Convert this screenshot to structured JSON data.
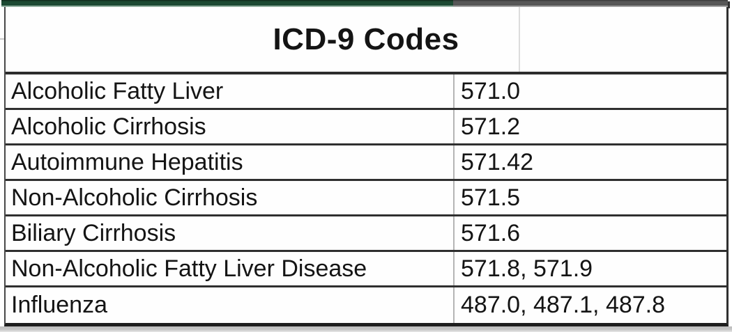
{
  "chart_data": {
    "type": "table",
    "title": "ICD-9 Codes",
    "rows": [
      {
        "condition": "Alcoholic Fatty Liver",
        "codes": "571.0"
      },
      {
        "condition": "Alcoholic Cirrhosis",
        "codes": "571.2"
      },
      {
        "condition": "Autoimmune Hepatitis",
        "codes": "571.42"
      },
      {
        "condition": "Non-Alcoholic Cirrhosis",
        "codes": "571.5"
      },
      {
        "condition": "Biliary Cirrhosis",
        "codes": "571.6"
      },
      {
        "condition": "Non-Alcoholic Fatty Liver Disease",
        "codes": "571.8, 571.9"
      },
      {
        "condition": "Influenza",
        "codes": "487.0, 487.1, 487.8"
      }
    ]
  },
  "colors": {
    "header_bar_green": "#1d4a33",
    "header_bar_gray": "#575757",
    "grid_border_dark": "#2d2d2d",
    "column_divider_gray": "#b5b5b5",
    "gridline_remnant": "#dcdcdc",
    "text": "#141414"
  }
}
